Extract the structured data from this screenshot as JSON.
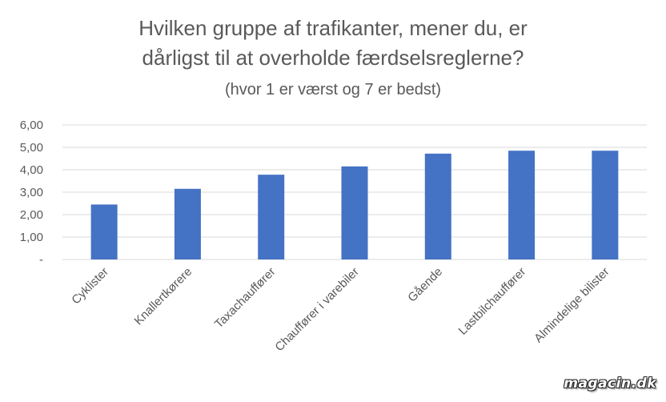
{
  "chart_data": {
    "type": "bar",
    "title": "Hvilken gruppe af trafikanter, mener du, er dårligst til at overholde færdselsreglerne?",
    "title_lines": [
      "Hvilken gruppe af trafikanter, mener du, er",
      "dårligst til at overholde færdselsreglerne?"
    ],
    "subtitle": "(hvor 1 er værst og 7 er bedst)",
    "xlabel": "",
    "ylabel": "",
    "categories": [
      "Cyklister",
      "Knallertkørere",
      "Taxachauffører",
      "Chauffører i varebiler",
      "Gående",
      "Lastbilchauffører",
      "Almindelige bilister"
    ],
    "values": [
      2.45,
      3.15,
      3.78,
      4.15,
      4.72,
      4.85,
      4.85
    ],
    "ylim": [
      0,
      6
    ],
    "yticks": [
      0,
      1,
      2,
      3,
      4,
      5,
      6
    ],
    "ytick_labels": [
      "-",
      "1,00",
      "2,00",
      "3,00",
      "4,00",
      "5,00",
      "6,00"
    ],
    "grid": true,
    "legend": "none",
    "bar_color": "#4472c4",
    "grid_color": "#d9d9d9",
    "text_color": "#595959"
  },
  "watermark": "magacin.dk"
}
